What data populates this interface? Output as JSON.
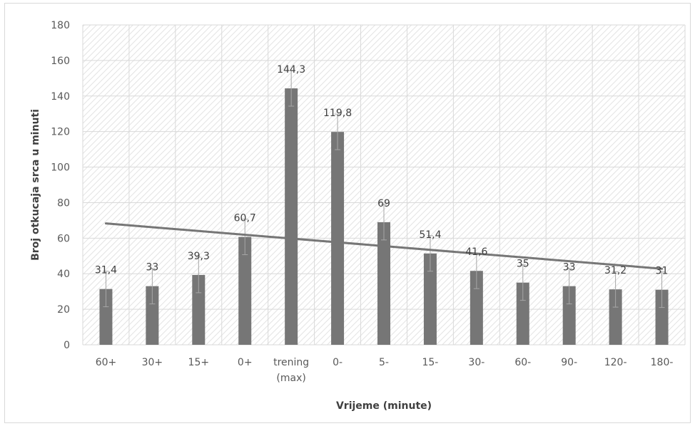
{
  "chart_data": {
    "type": "bar",
    "title": "",
    "xlabel": "Vrijeme (minute)",
    "ylabel": "Broj otkucaja srca u minuti",
    "ylim": [
      0,
      180
    ],
    "yticks": [
      0,
      20,
      40,
      60,
      80,
      100,
      120,
      140,
      160,
      180
    ],
    "categories": [
      "60+",
      "30+",
      "15+",
      "0+",
      "trening (max)",
      "0-",
      "5-",
      "15-",
      "30-",
      "60-",
      "90-",
      "120-",
      "180-"
    ],
    "values": [
      31.4,
      33,
      39.3,
      60.7,
      144.3,
      119.8,
      69,
      51.4,
      41.6,
      35,
      33,
      31.2,
      31
    ],
    "value_labels": [
      "31,4",
      "33",
      "39,3",
      "60,7",
      "144,3",
      "119,8",
      "69",
      "51,4",
      "41,6",
      "35",
      "33",
      "31,2",
      "31"
    ],
    "error_bars": [
      10,
      10,
      10,
      10,
      10,
      10,
      10,
      10,
      10,
      10,
      10,
      10,
      10
    ],
    "trendline": {
      "type": "linear",
      "start": 68.3,
      "end": 42.8
    },
    "grid": true,
    "background_pattern": "diagonal-hatch",
    "bar_color": "#767676",
    "trend_color": "#767676",
    "error_color": "#a6a6a6",
    "legend": "none"
  }
}
